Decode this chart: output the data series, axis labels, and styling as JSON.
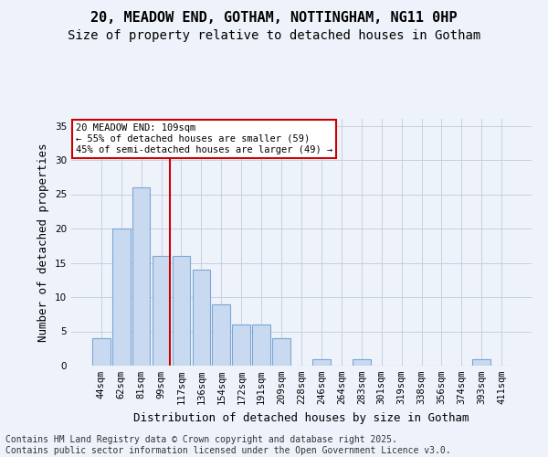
{
  "title1": "20, MEADOW END, GOTHAM, NOTTINGHAM, NG11 0HP",
  "title2": "Size of property relative to detached houses in Gotham",
  "xlabel": "Distribution of detached houses by size in Gotham",
  "ylabel": "Number of detached properties",
  "bins": [
    "44sqm",
    "62sqm",
    "81sqm",
    "99sqm",
    "117sqm",
    "136sqm",
    "154sqm",
    "172sqm",
    "191sqm",
    "209sqm",
    "228sqm",
    "246sqm",
    "264sqm",
    "283sqm",
    "301sqm",
    "319sqm",
    "338sqm",
    "356sqm",
    "374sqm",
    "393sqm",
    "411sqm"
  ],
  "values": [
    4,
    20,
    26,
    16,
    16,
    14,
    9,
    6,
    6,
    4,
    0,
    1,
    0,
    1,
    0,
    0,
    0,
    0,
    0,
    1,
    0
  ],
  "bar_color": "#c9d9f0",
  "bar_edge_color": "#7aa8d4",
  "property_line_color": "#cc0000",
  "annotation_text": "20 MEADOW END: 109sqm\n← 55% of detached houses are smaller (59)\n45% of semi-detached houses are larger (49) →",
  "annotation_box_color": "#ffffff",
  "annotation_box_edge_color": "#cc0000",
  "ylim": [
    0,
    36
  ],
  "yticks": [
    0,
    5,
    10,
    15,
    20,
    25,
    30,
    35
  ],
  "footer": "Contains HM Land Registry data © Crown copyright and database right 2025.\nContains public sector information licensed under the Open Government Licence v3.0.",
  "bg_color": "#eef2fb",
  "plot_bg_color": "#eef2fb",
  "title_fontsize": 11,
  "subtitle_fontsize": 10,
  "axis_label_fontsize": 9,
  "tick_fontsize": 7.5,
  "footer_fontsize": 7
}
